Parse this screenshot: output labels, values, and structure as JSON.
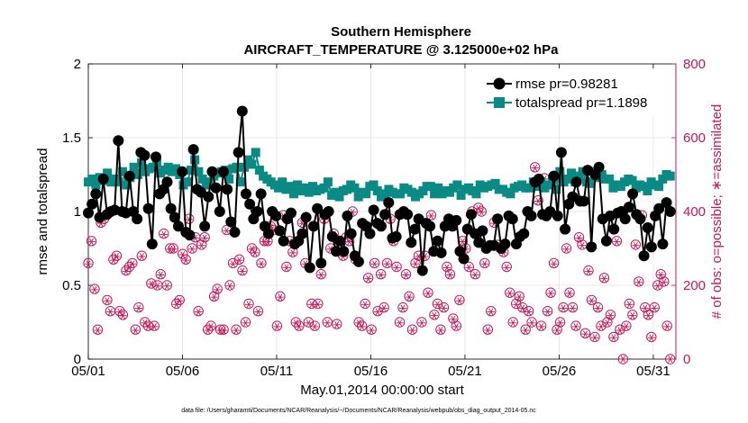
{
  "chart_data": {
    "type": "line",
    "title": "Southern Hemisphere",
    "subtitle": "AIRCRAFT_TEMPERATURE @ 3.125000e+02 hPa",
    "xlabel": "May.01,2014 00:00:00 start",
    "ylabel_left": "rmse and totalspread",
    "ylabel_right": "# of obs: o=possible; ∗=assimilated",
    "x_tick_labels": [
      "05/01",
      "05/06",
      "05/11",
      "05/16",
      "05/21",
      "05/26",
      "05/31"
    ],
    "x_tick_days": [
      1,
      6,
      11,
      16,
      21,
      26,
      31
    ],
    "xlim_days": [
      1,
      32.2
    ],
    "y_left_ticks": [
      "0",
      "0.5",
      "1",
      "1.5",
      "2"
    ],
    "y_left_lim": [
      0,
      2
    ],
    "y_right_ticks": [
      "0",
      "200",
      "400",
      "600",
      "800"
    ],
    "y_right_lim": [
      0,
      800
    ],
    "grid": true,
    "legend_position": "top-right",
    "series": [
      {
        "name": "rmse pr=0.98281",
        "color": "#000000",
        "marker": "circle",
        "values": [
          0.99,
          1.05,
          1.12,
          0.96,
          1.22,
          0.98,
          1.0,
          1.01,
          1.48,
          1.0,
          0.99,
          1.24,
          1.0,
          0.95,
          1.4,
          1.38,
          1.02,
          0.78,
          1.37,
          1.12,
          1.15,
          1.2,
          1.02,
          0.96,
          0.9,
          1.27,
          0.86,
          0.84,
          1.42,
          1.15,
          1.13,
          0.9,
          1.1,
          1.27,
          1.16,
          1.0,
          1.27,
          1.15,
          0.93,
          0.86,
          1.4,
          1.68,
          1.12,
          1.05,
          0.95,
          1.0,
          1.12,
          0.9,
          0.85,
          1.0,
          0.97,
          0.87,
          0.8,
          0.95,
          0.99,
          0.78,
          0.8,
          0.85,
          0.96,
          0.62,
          0.9,
          1.02,
          0.65,
          0.98,
          1.0,
          0.83,
          0.73,
          0.8,
          0.73,
          0.97,
          0.85,
          0.7,
          0.66,
          0.92,
          0.9,
          0.85,
          1.01,
          0.92,
          0.9,
          0.98,
          1.06,
          0.82,
          0.83,
          0.98,
          1.0,
          0.98,
          0.79,
          0.88,
          0.95,
          0.6,
          0.92,
          0.9,
          0.73,
          0.8,
          0.72,
          0.9,
          0.95,
          0.9,
          0.94,
          0.73,
          0.68,
          0.88,
          0.98,
          0.85,
          0.79,
          0.87,
          0.75,
          0.77,
          0.77,
          0.95,
          0.75,
          0.78,
          0.97,
          0.95,
          0.78,
          0.83,
          0.85,
          1.0,
          0.97,
          1.2,
          1.22,
          0.98,
          0.97,
          1.0,
          1.24,
          0.97,
          1.4,
          0.88,
          1.05,
          1.1,
          1.2,
          1.07,
          1.07,
          1.28,
          0.76,
          1.25,
          1.3,
          0.95,
          0.8,
          0.97,
          0.88,
          0.99,
          1.0,
          0.95,
          1.03,
          1.12,
          0.98,
          0.95,
          0.7,
          0.89,
          0.76,
          0.97,
          1.02,
          0.78,
          1.06,
          1.0
        ]
      },
      {
        "name": "totalspread pr=1.1898",
        "color": "#0a8a85",
        "marker": "square",
        "values": [
          1.2,
          1.22,
          1.18,
          1.23,
          1.21,
          1.26,
          1.2,
          1.22,
          1.2,
          1.27,
          1.18,
          1.23,
          1.3,
          1.25,
          1.33,
          1.27,
          1.29,
          1.3,
          1.33,
          1.26,
          1.28,
          1.3,
          1.27,
          1.29,
          1.25,
          1.18,
          1.2,
          1.28,
          1.35,
          1.27,
          1.22,
          1.18,
          1.2,
          1.24,
          1.26,
          1.27,
          1.28,
          1.22,
          1.29,
          1.3,
          1.2,
          1.3,
          1.35,
          1.32,
          1.4,
          1.28,
          1.24,
          1.22,
          1.2,
          1.18,
          1.16,
          1.2,
          1.15,
          1.17,
          1.12,
          1.18,
          1.14,
          1.16,
          1.13,
          1.17,
          1.14,
          1.15,
          1.16,
          1.2,
          1.11,
          1.13,
          1.1,
          1.14,
          1.15,
          1.18,
          1.16,
          1.1,
          1.13,
          1.12,
          1.17,
          1.18,
          1.14,
          1.1,
          1.12,
          1.15,
          1.13,
          1.12,
          1.12,
          1.16,
          1.15,
          1.13,
          1.1,
          1.12,
          1.14,
          1.17,
          1.17,
          1.12,
          1.16,
          1.12,
          1.14,
          1.13,
          1.16,
          1.18,
          1.11,
          1.15,
          1.16,
          1.14,
          1.12,
          1.18,
          1.16,
          1.17,
          1.18,
          1.19,
          1.15,
          1.15,
          1.13,
          1.12,
          1.16,
          1.17,
          1.18,
          1.16,
          1.16,
          1.2,
          1.17,
          1.2,
          1.16,
          1.18,
          1.22,
          1.15,
          1.27,
          1.2,
          1.22,
          1.26,
          1.2,
          1.24,
          1.27,
          1.2,
          1.19,
          1.27,
          1.23,
          1.25,
          1.22,
          1.22,
          1.16,
          1.18,
          1.17,
          1.2,
          1.22,
          1.21,
          1.16,
          1.18,
          1.17,
          1.14,
          1.2,
          1.18,
          1.17,
          1.22,
          1.25,
          1.24
        ]
      },
      {
        "name": "possible",
        "color": "#c2185b",
        "marker": "circle-open",
        "axis": "right",
        "values": [
          260,
          320,
          190,
          80,
          370,
          380,
          160,
          130,
          270,
          280,
          130,
          120,
          240,
          250,
          260,
          80,
          140,
          280,
          100,
          90,
          205,
          90,
          200,
          230,
          340,
          200,
          300,
          300,
          150,
          160,
          285,
          270,
          380,
          300,
          330,
          130,
          310,
          330,
          80,
          90,
          170,
          190,
          80,
          80,
          350,
          200,
          260,
          80,
          270,
          240,
          100,
          150,
          300,
          290,
          130,
          260,
          320,
          320,
          360,
          350,
          90,
          170,
          390,
          250,
          320,
          290,
          100,
          90,
          370,
          260,
          100,
          150,
          90,
          150,
          230,
          380,
          100,
          300,
          340,
          95,
          300,
          280,
          330,
          320,
          400,
          270,
          100,
          90,
          150,
          220,
          80,
          260,
          130,
          230,
          140,
          260,
          380,
          320,
          250,
          100,
          140,
          230,
          170,
          80,
          260,
          280,
          100,
          280,
          180,
          390,
          120,
          150,
          80,
          140,
          250,
          230,
          110,
          90,
          160,
          320,
          300,
          250,
          400,
          230,
          410,
          400,
          260,
          80,
          130,
          370,
          310,
          300,
          290,
          250,
          180,
          100,
          150,
          170,
          140,
          80,
          130,
          100,
          520,
          430,
          90,
          490,
          130,
          180,
          260,
          80,
          100,
          140,
          300,
          180,
          140,
          90,
          330,
          310,
          70,
          240,
          160,
          60,
          140,
          90,
          220,
          100,
          120,
          60,
          320,
          80,
          0,
          90,
          150,
          120,
          310,
          210,
          390,
          140,
          120,
          60,
          140,
          200,
          230,
          210,
          90,
          0
        ]
      },
      {
        "name": "assimilated",
        "color": "#c2185b",
        "marker": "asterisk",
        "axis": "right",
        "values": [
          258,
          318,
          188,
          78,
          368,
          378,
          158,
          128,
          268,
          278,
          128,
          118,
          238,
          248,
          258,
          78,
          138,
          278,
          98,
          88,
          203,
          88,
          198,
          228,
          338,
          198,
          298,
          298,
          148,
          158,
          283,
          268,
          378,
          298,
          328,
          128,
          308,
          328,
          78,
          88,
          168,
          188,
          78,
          78,
          348,
          198,
          258,
          78,
          268,
          238,
          98,
          148,
          298,
          288,
          128,
          258,
          318,
          318,
          358,
          348,
          88,
          168,
          388,
          248,
          318,
          288,
          98,
          88,
          368,
          258,
          98,
          148,
          88,
          148,
          228,
          378,
          98,
          298,
          338,
          93,
          298,
          278,
          328,
          318,
          398,
          268,
          98,
          88,
          148,
          218,
          78,
          258,
          128,
          228,
          138,
          258,
          378,
          318,
          248,
          98,
          138,
          228,
          168,
          78,
          258,
          278,
          98,
          278,
          178,
          388,
          118,
          148,
          78,
          138,
          248,
          228,
          108,
          88,
          158,
          318,
          298,
          248,
          398,
          228,
          408,
          398,
          258,
          78,
          128,
          368,
          308,
          298,
          288,
          248,
          178,
          98,
          148,
          168,
          138,
          78,
          128,
          98,
          518,
          428,
          88,
          488,
          128,
          178,
          258,
          78,
          98,
          138,
          298,
          178,
          138,
          88,
          328,
          308,
          68,
          238,
          158,
          58,
          138,
          88,
          218,
          98,
          118,
          58,
          318,
          78,
          0,
          88,
          148,
          118,
          308,
          208,
          388,
          138,
          118,
          58,
          138,
          198,
          228,
          208,
          88,
          0
        ]
      }
    ],
    "footer": "data file: /Users/gharamti/Documents/NCAR/Reanalysis/~/Documents/NCAR/Reanalysis/webpub/obs_diag_output_2014-05.nc"
  }
}
